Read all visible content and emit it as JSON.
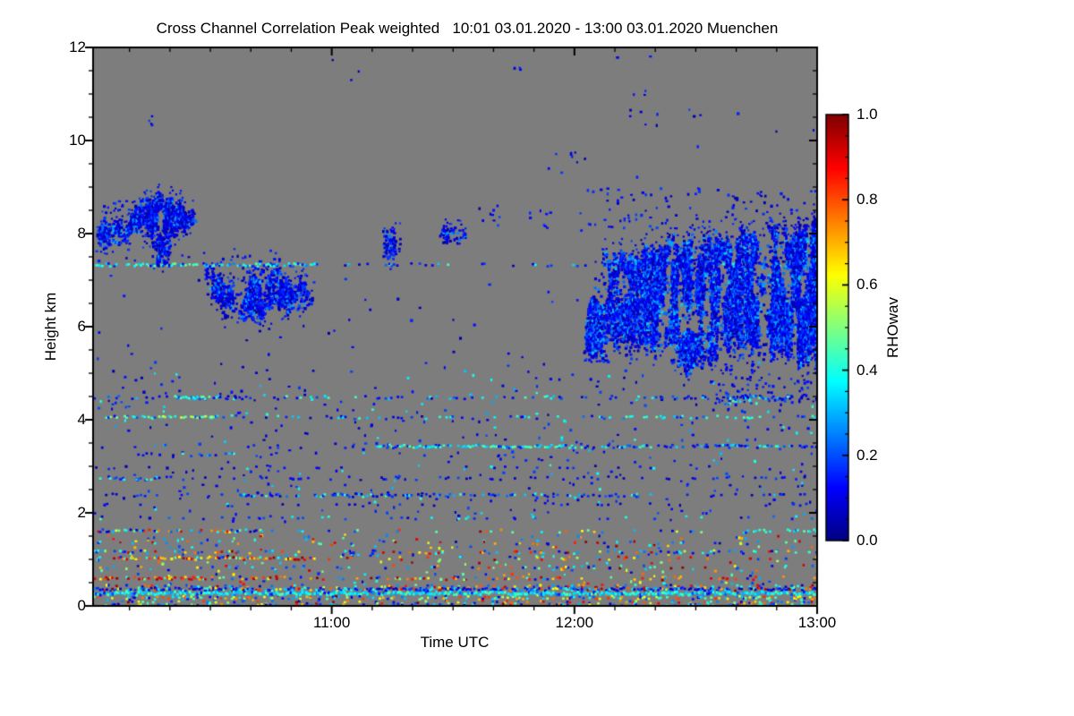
{
  "chart_data": {
    "type": "heatmap",
    "title": "Cross Channel Correlation Peak weighted   10:01 03.01.2020 - 13:00 03.01.2020 Muenchen",
    "product": "Cross Channel Correlation Peak weighted",
    "time_start": "10:01 03.01.2020",
    "time_end": "13:00 03.01.2020",
    "station": "Muenchen",
    "xlabel": "Time UTC",
    "ylabel": "Height km",
    "x_axis": {
      "start": "10:01",
      "end": "13:00",
      "duration_minutes": 179,
      "major_ticks": [
        {
          "minute": 59,
          "label": "11:00"
        },
        {
          "minute": 119,
          "label": "12:00"
        },
        {
          "minute": 179,
          "label": "13:00"
        }
      ],
      "minor_tick_minutes": 10
    },
    "y_axis": {
      "min": 0,
      "max": 12,
      "major_ticks": [
        0,
        2,
        4,
        6,
        8,
        10,
        12
      ],
      "minor_tick_km": 0.5
    },
    "colorbar": {
      "label": "RHOwav",
      "min": 0.0,
      "max": 1.0,
      "ticks": [
        "0.0",
        "0.2",
        "0.4",
        "0.6",
        "0.8",
        "1.0"
      ],
      "minor_tick": 0.05,
      "colormap": "jet"
    },
    "no_data_color": "#7d7d7d",
    "frame_color": "#000000",
    "palettes": {
      "blue": [
        [
          1,
          0.04,
          0.2
        ]
      ],
      "fieldblue": [
        [
          0.85,
          0.04,
          0.2
        ],
        [
          0.15,
          0.28,
          0.42
        ]
      ],
      "bluecyan": [
        [
          0.7,
          0.05,
          0.24
        ],
        [
          0.3,
          0.3,
          0.45
        ]
      ],
      "cyan": [
        [
          0.2,
          0.12,
          0.26
        ],
        [
          0.8,
          0.32,
          0.48
        ]
      ],
      "cyangreen": [
        [
          0.55,
          0.33,
          0.5
        ],
        [
          0.3,
          0.48,
          0.6
        ],
        [
          0.15,
          0.1,
          0.25
        ]
      ],
      "multi": [
        [
          0.45,
          0.05,
          0.3
        ],
        [
          0.2,
          0.3,
          0.5
        ],
        [
          0.2,
          0.55,
          0.8
        ],
        [
          0.15,
          0.8,
          1.0
        ]
      ],
      "warm": [
        [
          0.15,
          0.08,
          0.3
        ],
        [
          0.15,
          0.35,
          0.55
        ],
        [
          0.35,
          0.6,
          0.8
        ],
        [
          0.35,
          0.8,
          1.0
        ]
      ],
      "warmfield": [
        [
          0.4,
          0.05,
          0.3
        ],
        [
          0.2,
          0.3,
          0.5
        ],
        [
          0.2,
          0.5,
          0.75
        ],
        [
          0.2,
          0.75,
          1.0
        ]
      ],
      "redline": [
        [
          0.12,
          0.3,
          0.5
        ],
        [
          0.28,
          0.6,
          0.8
        ],
        [
          0.6,
          0.8,
          1.0
        ]
      ],
      "cyanline": [
        [
          0.85,
          0.3,
          0.46
        ],
        [
          0.15,
          0.12,
          0.3
        ]
      ],
      "mixline": [
        [
          0.55,
          0.04,
          0.2
        ],
        [
          0.28,
          0.25,
          0.45
        ],
        [
          0.17,
          0.6,
          1.0
        ]
      ],
      "bottomband": [
        [
          0.3,
          0.3,
          0.5
        ],
        [
          0.25,
          0.48,
          0.65
        ],
        [
          0.25,
          0.65,
          0.85
        ],
        [
          0.2,
          0.05,
          0.3
        ]
      ],
      "cyanorange": [
        [
          0.35,
          0.3,
          0.5
        ],
        [
          0.3,
          0.05,
          0.25
        ],
        [
          0.35,
          0.6,
          0.9
        ]
      ],
      "cloud": [
        [
          0.5,
          0.03,
          0.12
        ],
        [
          0.35,
          0.1,
          0.2
        ],
        [
          0.15,
          0.2,
          0.32
        ]
      ],
      "cloudE": [
        [
          0.55,
          0.03,
          0.14
        ],
        [
          0.3,
          0.12,
          0.24
        ],
        [
          0.15,
          0.22,
          0.34
        ]
      ]
    },
    "features": {
      "clouds": [
        {
          "pts": [
            [
              0.8,
              7.8,
              8.1
            ],
            [
              2.5,
              7.75,
              8.3
            ],
            [
              4.5,
              7.8,
              8.38
            ],
            [
              6.5,
              7.85,
              8.25
            ],
            [
              8.8,
              7.9,
              8.2
            ]
          ],
          "d": 0.8,
          "rag": 0.12,
          "p": "cloud"
        },
        {
          "pts": [
            [
              8,
              7.95,
              8.25
            ],
            [
              9.5,
              7.9,
              8.5
            ],
            [
              11,
              8.05,
              8.75
            ],
            [
              13,
              8.1,
              8.85
            ],
            [
              15,
              7.95,
              8.8
            ],
            [
              17,
              7.9,
              8.85
            ],
            [
              19,
              8.0,
              8.8
            ],
            [
              21,
              8.05,
              8.75
            ],
            [
              23,
              8.1,
              8.6
            ],
            [
              25.3,
              8.2,
              8.45
            ]
          ],
          "d": 0.85,
          "rag": 0.15,
          "p": "cloud"
        },
        {
          "pts": [
            [
              14.5,
              7.5,
              8.0
            ],
            [
              16,
              7.37,
              8.05
            ],
            [
              17.5,
              7.4,
              8.0
            ],
            [
              19,
              7.65,
              8.0
            ]
          ],
          "d": 0.65,
          "rag": 0.1,
          "p": "cloud"
        },
        {
          "pts": [
            [
              27.5,
              6.85,
              7.3
            ],
            [
              29.5,
              6.55,
              7.2
            ],
            [
              31.5,
              6.4,
              7.05
            ],
            [
              34,
              6.3,
              6.95
            ],
            [
              36.5,
              6.2,
              7.0
            ],
            [
              39,
              6.15,
              7.05
            ],
            [
              41.5,
              6.2,
              7.15
            ],
            [
              44,
              6.25,
              7.2
            ],
            [
              46.5,
              6.3,
              7.15
            ],
            [
              49,
              6.35,
              7.05
            ],
            [
              51.5,
              6.45,
              6.95
            ],
            [
              54.5,
              6.55,
              6.8
            ]
          ],
          "d": 0.82,
          "rag": 0.18,
          "p": "cloud"
        },
        {
          "pts": [
            [
              71.5,
              7.6,
              8.05
            ],
            [
              73.5,
              7.45,
              8.15
            ],
            [
              75.8,
              7.65,
              8.0
            ]
          ],
          "d": 0.5,
          "rag": 0.15,
          "p": "cloud"
        },
        {
          "pts": [
            [
              85.5,
              7.95,
              8.1
            ],
            [
              87.5,
              7.85,
              8.2
            ],
            [
              89.5,
              7.88,
              8.22
            ],
            [
              91.8,
              7.95,
              8.12
            ]
          ],
          "d": 0.8,
          "rag": 0.08,
          "p": "cloud"
        },
        {
          "pts": [
            [
              121.5,
              5.45,
              6.1
            ],
            [
              124,
              5.3,
              7.2
            ],
            [
              127,
              5.75,
              7.5
            ],
            [
              130,
              5.6,
              7.55
            ],
            [
              133,
              5.35,
              7.6
            ],
            [
              136,
              5.6,
              7.75
            ],
            [
              139,
              5.3,
              7.7
            ],
            [
              142,
              5.45,
              7.85
            ],
            [
              145,
              5.15,
              7.8
            ],
            [
              148,
              5.0,
              7.9
            ],
            [
              151,
              5.3,
              7.95
            ],
            [
              154,
              5.2,
              8.0
            ],
            [
              157,
              5.05,
              7.9
            ],
            [
              160,
              5.35,
              8.05
            ],
            [
              163,
              5.15,
              8.0
            ],
            [
              166,
              5.3,
              8.1
            ],
            [
              169,
              5.45,
              8.15
            ],
            [
              172,
              5.25,
              8.1
            ],
            [
              175,
              5.35,
              8.2
            ],
            [
              179,
              5.25,
              8.15
            ]
          ],
          "d": 0.82,
          "rag": 0.3,
          "p": "cloudE"
        }
      ],
      "streaks": [
        {
          "h": 7.35,
          "t0": 0,
          "t1": 55,
          "d": 0.72,
          "p": "cyan"
        },
        {
          "h": 7.35,
          "t0": 55,
          "t1": 127,
          "d": 0.2,
          "p": "bluecyan"
        },
        {
          "h": 7.35,
          "t0": 127,
          "t1": 179,
          "d": 0.4,
          "p": "bluecyan"
        },
        {
          "h": 4.5,
          "t0": 0,
          "t1": 179,
          "d": 0.28,
          "p": "bluecyan"
        },
        {
          "h": 4.5,
          "t0": 20,
          "t1": 30,
          "d": 0.65,
          "p": "cyan"
        },
        {
          "h": 4.08,
          "t0": 3,
          "t1": 31,
          "d": 0.72,
          "p": "cyangreen"
        },
        {
          "h": 4.08,
          "t0": 31,
          "t1": 125,
          "d": 0.16,
          "p": "bluecyan"
        },
        {
          "h": 4.08,
          "t0": 125,
          "t1": 166,
          "d": 0.5,
          "p": "cyan"
        },
        {
          "h": 4.08,
          "t0": 166,
          "t1": 179,
          "d": 0.3,
          "p": "bluecyan"
        },
        {
          "h": 3.45,
          "t0": 0,
          "t1": 70,
          "d": 0.1,
          "p": "blue"
        },
        {
          "h": 3.45,
          "t0": 70,
          "t1": 120,
          "d": 0.78,
          "p": "cyan"
        },
        {
          "h": 3.45,
          "t0": 120,
          "t1": 179,
          "d": 0.5,
          "p": "bluecyan"
        },
        {
          "h": 3.28,
          "t0": 8,
          "t1": 35,
          "d": 0.3,
          "p": "bluecyan"
        },
        {
          "h": 3.0,
          "t0": 0,
          "t1": 179,
          "d": 0.08,
          "p": "blue"
        },
        {
          "h": 2.77,
          "t0": 0,
          "t1": 17,
          "d": 0.45,
          "p": "bluecyan"
        },
        {
          "h": 2.77,
          "t0": 17,
          "t1": 179,
          "d": 0.15,
          "p": "blue"
        },
        {
          "h": 2.4,
          "t0": 0,
          "t1": 35,
          "d": 0.18,
          "p": "blue"
        },
        {
          "h": 2.4,
          "t0": 35,
          "t1": 100,
          "d": 0.5,
          "p": "bluecyan"
        },
        {
          "h": 2.4,
          "t0": 100,
          "t1": 140,
          "d": 0.42,
          "p": "bluecyan"
        },
        {
          "h": 2.4,
          "t0": 140,
          "t1": 179,
          "d": 0.18,
          "p": "blue"
        },
        {
          "h": 2.2,
          "t0": 0,
          "t1": 179,
          "d": 0.07,
          "p": "blue"
        },
        {
          "h": 1.92,
          "t0": 0,
          "t1": 179,
          "d": 0.13,
          "p": "bluecyan"
        },
        {
          "h": 1.63,
          "t0": 0,
          "t1": 42,
          "d": 0.6,
          "p": "cyanorange"
        },
        {
          "h": 1.63,
          "t0": 42,
          "t1": 160,
          "d": 0.13,
          "p": "multi"
        },
        {
          "h": 1.63,
          "t0": 160,
          "t1": 179,
          "d": 0.42,
          "p": "cyan"
        },
        {
          "h": 1.38,
          "t0": 0,
          "t1": 179,
          "d": 0.1,
          "p": "multi"
        },
        {
          "h": 1.18,
          "t0": 0,
          "t1": 179,
          "d": 0.26,
          "p": "multi"
        },
        {
          "h": 1.05,
          "t0": 5,
          "t1": 18,
          "d": 0.55,
          "p": "warm"
        },
        {
          "h": 1.05,
          "t0": 20,
          "t1": 55,
          "d": 0.7,
          "p": "warm"
        },
        {
          "h": 1.05,
          "t0": 55,
          "t1": 179,
          "d": 0.16,
          "p": "warm"
        },
        {
          "h": 0.85,
          "t0": 0,
          "t1": 179,
          "d": 0.13,
          "p": "multi"
        },
        {
          "h": 0.62,
          "t0": 0,
          "t1": 28,
          "d": 0.65,
          "p": "redline"
        },
        {
          "h": 0.62,
          "t0": 28,
          "t1": 120,
          "d": 0.28,
          "p": "warm"
        },
        {
          "h": 0.62,
          "t0": 120,
          "t1": 179,
          "d": 0.14,
          "p": "warm"
        },
        {
          "h": 0.45,
          "t0": 0,
          "t1": 179,
          "d": 0.26,
          "p": "multi"
        },
        {
          "h": 0.38,
          "t0": 0,
          "t1": 179,
          "d": 0.8,
          "p": "mixline"
        },
        {
          "h": 0.3,
          "t0": 0,
          "t1": 179,
          "d": 0.97,
          "p": "cyanline",
          "th": 3.2
        },
        {
          "h": 0.2,
          "t0": 0,
          "t1": 179,
          "d": 0.45,
          "p": "bottomband"
        },
        {
          "h": 0.1,
          "t0": 0,
          "t1": 179,
          "d": 0.22,
          "p": "multi"
        },
        {
          "h": 0.05,
          "t0": 0,
          "t1": 179,
          "d": 0.25,
          "p": "multi"
        }
      ],
      "dots": [
        {
          "r": [
            0,
            10,
            8.35,
            8.75
          ],
          "n": 14,
          "p": "blue"
        },
        {
          "r": [
            0,
            55,
            7.42,
            7.72
          ],
          "n": 18,
          "p": "blue"
        },
        {
          "r": [
            12,
            16,
            10.35,
            10.55
          ],
          "n": 4,
          "p": "blue"
        },
        {
          "r": [
            103,
            107,
            11.35,
            11.6
          ],
          "n": 3,
          "p": "blue"
        },
        {
          "r": [
            108,
            124,
            9.3,
            9.8
          ],
          "n": 9,
          "p": "blue"
        },
        {
          "r": [
            128,
            150,
            10.25,
            10.8
          ],
          "n": 9,
          "p": "blue"
        },
        {
          "r": [
            130,
            137,
            10.9,
            11.15
          ],
          "n": 3,
          "p": "blue"
        },
        {
          "r": [
            95,
            121,
            8.0,
            8.55
          ],
          "n": 12,
          "p": "blue"
        },
        {
          "r": [
            95,
            100,
            8.3,
            8.65
          ],
          "n": 6,
          "p": "blue"
        },
        {
          "r": [
            34,
            46,
            7.0,
            7.55
          ],
          "n": 26,
          "p": "blue"
        },
        {
          "r": [
            0,
            179,
            1.8,
            5.2
          ],
          "n": 430,
          "p": "fieldblue"
        },
        {
          "r": [
            0,
            179,
            5.2,
            7.25
          ],
          "n": 55,
          "p": "blue"
        },
        {
          "r": [
            0,
            179,
            8.3,
            11.9
          ],
          "n": 12,
          "p": "blue"
        },
        {
          "r": [
            0,
            179,
            0.0,
            1.55
          ],
          "n": 420,
          "p": "warmfield"
        },
        {
          "r": [
            122,
            179,
            8.1,
            9.0
          ],
          "n": 110,
          "p": "blue"
        },
        {
          "r": [
            150,
            179,
            4.35,
            4.95
          ],
          "n": 70,
          "p": "blue"
        },
        {
          "r": [
            121,
            127,
            5.25,
            5.6
          ],
          "n": 22,
          "p": "blue"
        },
        {
          "r": [
            155,
            165,
            4.35,
            4.55
          ],
          "n": 25,
          "p": "bluecyan"
        }
      ]
    }
  }
}
